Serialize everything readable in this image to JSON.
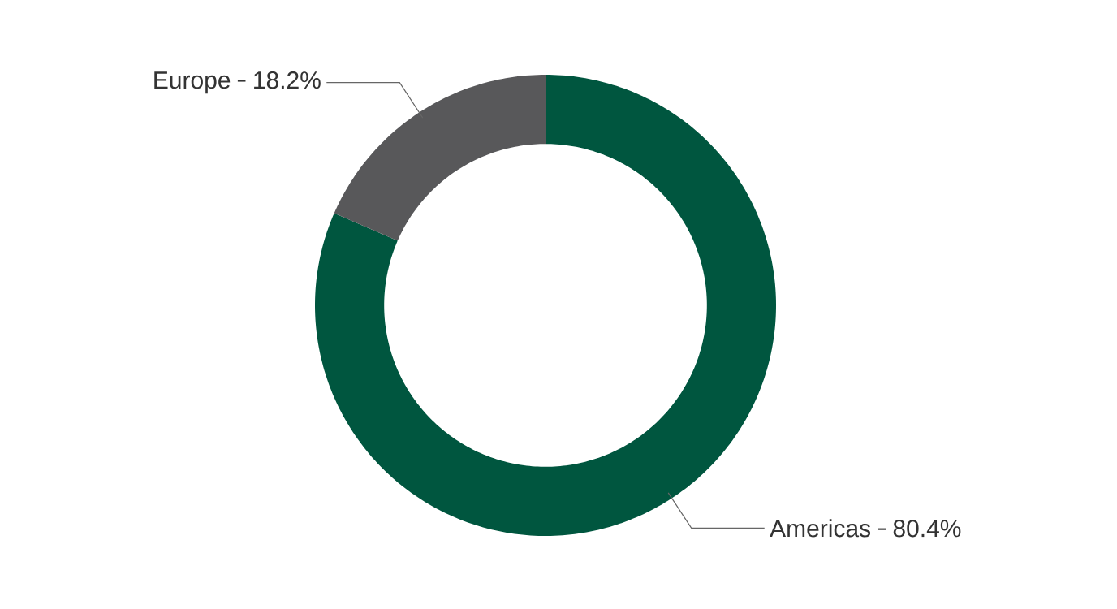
{
  "chart_data": {
    "type": "donut",
    "categories": [
      "Americas",
      "Europe"
    ],
    "values": [
      80.4,
      18.2
    ],
    "value_labels": [
      "80.4%",
      "18.2%"
    ],
    "colors": [
      "#00563f",
      "#58585a"
    ]
  }
}
